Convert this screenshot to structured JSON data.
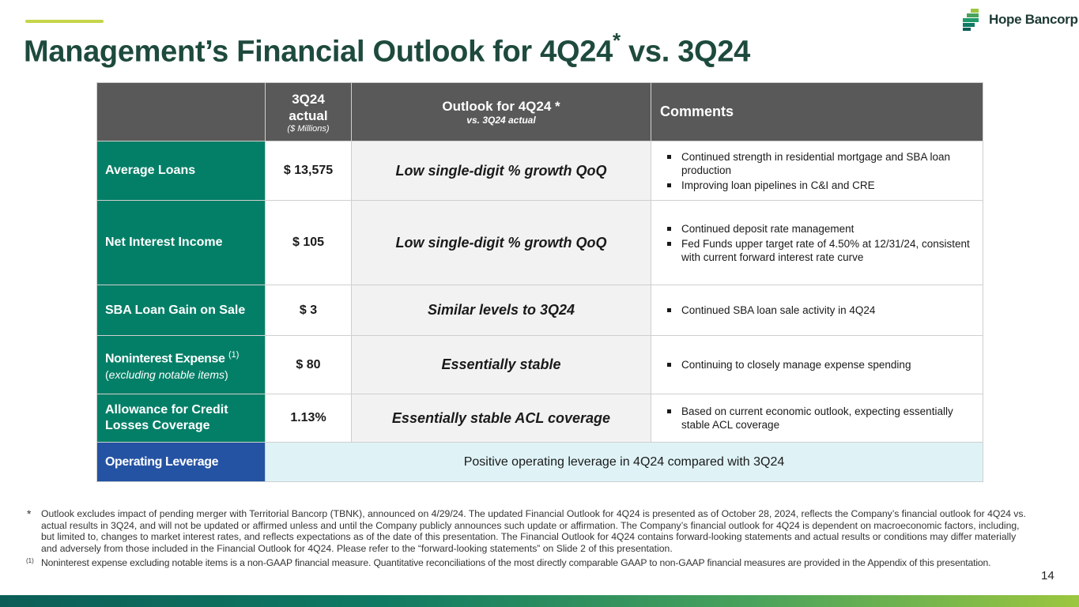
{
  "header": {
    "title": "Management’s Financial Outlook for 4Q24",
    "title_mark": "*",
    "title_suffix": " vs. 3Q24",
    "brand": "Hope Bancorp",
    "brand_icon": "hope-bancorp-logo-icon"
  },
  "table": {
    "headers": {
      "actual_title": "3Q24 actual",
      "actual_sub": "($ Millions)",
      "outlook_title": "Outlook for 4Q24 *",
      "outlook_sub": "vs. 3Q24 actual",
      "comments": "Comments"
    },
    "rows": [
      {
        "label": "Average Loans",
        "actual": "$ 13,575",
        "outlook": "Low single-digit % growth QoQ",
        "comments": [
          "Continued strength in residential mortgage and SBA loan production",
          "Improving loan pipelines in C&I and CRE"
        ]
      },
      {
        "label": "Net Interest Income",
        "actual": "$ 105",
        "outlook": "Low single-digit % growth QoQ",
        "comments": [
          "Continued deposit rate management",
          "Fed Funds upper target rate of 4.50% at 12/31/24, consistent with current forward interest rate curve"
        ]
      },
      {
        "label": "SBA Loan Gain on Sale",
        "actual": "$ 3",
        "outlook": "Similar levels to 3Q24",
        "comments": [
          "Continued SBA loan sale activity in 4Q24"
        ]
      },
      {
        "label": "Noninterest Expense",
        "label_mark": "(1)",
        "label_sub": "excluding notable items",
        "actual": "$ 80",
        "outlook": "Essentially stable",
        "comments": [
          "Continuing to closely manage expense spending"
        ]
      },
      {
        "label": "Allowance for Credit Losses Coverage",
        "actual": "1.13%",
        "outlook": "Essentially stable ACL coverage",
        "comments": [
          "Based on current economic outlook, expecting essentially stable ACL coverage"
        ]
      }
    ],
    "operating_leverage": {
      "label": "Operating Leverage",
      "value": "Positive operating leverage in 4Q24 compared with 3Q24"
    }
  },
  "footnotes": {
    "star_mark": "*",
    "star_text": "Outlook excludes impact of pending merger with Territorial Bancorp (TBNK), announced on 4/29/24. The updated Financial Outlook for 4Q24 is presented as of October 28, 2024, reflects the Company’s financial outlook for 4Q24 vs. actual results in 3Q24, and will not be updated or affirmed unless and until the Company publicly announces such update or affirmation. The Company’s financial outlook for 4Q24 is dependent on macroeconomic factors, including, but limited to, changes to market interest rates, and reflects expectations as of the date of this presentation. The Financial Outlook for 4Q24 contains forward-looking statements and actual results or conditions may differ materially and adversely from those included in the Financial Outlook for 4Q24. Please refer to the “forward-looking statements” on Slide 2 of this presentation.",
    "one_mark": "(1)",
    "one_text": "Noninterest expense excluding notable items is a non-GAAP financial measure. Quantitative reconciliations of the most directly comparable GAAP to non-GAAP financial measures are provided in the Appendix of this presentation."
  },
  "page_number": "14",
  "colors": {
    "title": "#1d4a3c",
    "row_label_bg": "#047f67",
    "header_bg": "#595959",
    "op_leverage_bg": "#2553a3",
    "op_leverage_value_bg": "#dff3f7"
  }
}
